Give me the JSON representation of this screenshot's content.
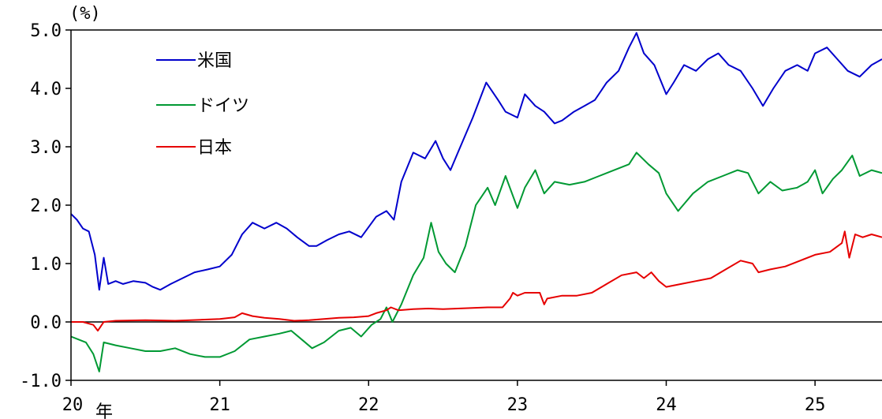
{
  "chart_data": {
    "type": "line",
    "title": "",
    "ylabel": "(%)",
    "xlabel": "",
    "x_unit_label": "年",
    "xlim": [
      2020,
      2025.45
    ],
    "ylim": [
      -1.0,
      5.0
    ],
    "grid": false,
    "legend_placement": "top-left",
    "y_ticks": [
      "5.0",
      "4.0",
      "3.0",
      "2.0",
      "1.0",
      "0.0",
      "-1.0"
    ],
    "x_ticks": [
      {
        "value": 2020,
        "label": "20"
      },
      {
        "value": 2021,
        "label": "21"
      },
      {
        "value": 2022,
        "label": "22"
      },
      {
        "value": 2023,
        "label": "23"
      },
      {
        "value": 2024,
        "label": "24"
      },
      {
        "value": 2025,
        "label": "25"
      }
    ],
    "series": [
      {
        "name": "米国",
        "color": "#0000cc",
        "x": [
          2020.0,
          2020.04,
          2020.08,
          2020.12,
          2020.16,
          2020.19,
          2020.22,
          2020.25,
          2020.3,
          2020.35,
          2020.42,
          2020.5,
          2020.55,
          2020.6,
          2020.67,
          2020.75,
          2020.83,
          2020.92,
          2021.0,
          2021.08,
          2021.15,
          2021.22,
          2021.3,
          2021.38,
          2021.45,
          2021.52,
          2021.6,
          2021.65,
          2021.72,
          2021.8,
          2021.87,
          2021.95,
          2022.05,
          2022.12,
          2022.17,
          2022.22,
          2022.3,
          2022.38,
          2022.45,
          2022.5,
          2022.55,
          2022.6,
          2022.7,
          2022.79,
          2022.87,
          2022.92,
          2023.0,
          2023.05,
          2023.12,
          2023.18,
          2023.25,
          2023.3,
          2023.38,
          2023.45,
          2023.52,
          2023.6,
          2023.68,
          2023.75,
          2023.8,
          2023.85,
          2023.92,
          2024.0,
          2024.05,
          2024.12,
          2024.2,
          2024.28,
          2024.35,
          2024.42,
          2024.5,
          2024.58,
          2024.65,
          2024.72,
          2024.8,
          2024.88,
          2024.95,
          2025.0,
          2025.08,
          2025.15,
          2025.22,
          2025.3,
          2025.38,
          2025.45
        ],
        "values": [
          1.85,
          1.75,
          1.6,
          1.55,
          1.15,
          0.55,
          1.1,
          0.65,
          0.7,
          0.65,
          0.7,
          0.67,
          0.6,
          0.55,
          0.65,
          0.75,
          0.85,
          0.9,
          0.95,
          1.15,
          1.5,
          1.7,
          1.6,
          1.7,
          1.6,
          1.45,
          1.3,
          1.3,
          1.4,
          1.5,
          1.55,
          1.45,
          1.8,
          1.9,
          1.75,
          2.4,
          2.9,
          2.8,
          3.1,
          2.8,
          2.6,
          2.9,
          3.5,
          4.1,
          3.8,
          3.6,
          3.5,
          3.9,
          3.7,
          3.6,
          3.4,
          3.45,
          3.6,
          3.7,
          3.8,
          4.1,
          4.3,
          4.7,
          4.95,
          4.6,
          4.4,
          3.9,
          4.1,
          4.4,
          4.3,
          4.5,
          4.6,
          4.4,
          4.3,
          4.0,
          3.7,
          4.0,
          4.3,
          4.4,
          4.3,
          4.6,
          4.7,
          4.5,
          4.3,
          4.2,
          4.4,
          4.5
        ]
      },
      {
        "name": "ドイツ",
        "color": "#009933",
        "x": [
          2020.0,
          2020.05,
          2020.1,
          2020.15,
          2020.19,
          2020.22,
          2020.3,
          2020.4,
          2020.5,
          2020.6,
          2020.7,
          2020.8,
          2020.9,
          2021.0,
          2021.1,
          2021.2,
          2021.3,
          2021.4,
          2021.48,
          2021.55,
          2021.62,
          2021.7,
          2021.8,
          2021.88,
          2021.95,
          2022.02,
          2022.08,
          2022.12,
          2022.16,
          2022.22,
          2022.3,
          2022.37,
          2022.42,
          2022.47,
          2022.52,
          2022.58,
          2022.65,
          2022.72,
          2022.8,
          2022.85,
          2022.92,
          2023.0,
          2023.05,
          2023.12,
          2023.18,
          2023.25,
          2023.35,
          2023.45,
          2023.55,
          2023.65,
          2023.75,
          2023.8,
          2023.88,
          2023.95,
          2024.0,
          2024.08,
          2024.18,
          2024.28,
          2024.38,
          2024.48,
          2024.55,
          2024.62,
          2024.7,
          2024.78,
          2024.88,
          2024.95,
          2025.0,
          2025.05,
          2025.12,
          2025.18,
          2025.25,
          2025.3,
          2025.38,
          2025.45
        ],
        "values": [
          -0.25,
          -0.3,
          -0.35,
          -0.55,
          -0.85,
          -0.35,
          -0.4,
          -0.45,
          -0.5,
          -0.5,
          -0.45,
          -0.55,
          -0.6,
          -0.6,
          -0.5,
          -0.3,
          -0.25,
          -0.2,
          -0.15,
          -0.3,
          -0.45,
          -0.35,
          -0.15,
          -0.1,
          -0.25,
          -0.05,
          0.05,
          0.25,
          0.0,
          0.3,
          0.8,
          1.1,
          1.7,
          1.2,
          1.0,
          0.85,
          1.3,
          2.0,
          2.3,
          2.0,
          2.5,
          1.95,
          2.3,
          2.6,
          2.2,
          2.4,
          2.35,
          2.4,
          2.5,
          2.6,
          2.7,
          2.9,
          2.7,
          2.55,
          2.2,
          1.9,
          2.2,
          2.4,
          2.5,
          2.6,
          2.55,
          2.2,
          2.4,
          2.25,
          2.3,
          2.4,
          2.6,
          2.2,
          2.45,
          2.6,
          2.85,
          2.5,
          2.6,
          2.55
        ]
      },
      {
        "name": "日本",
        "color": "#e60000",
        "x": [
          2020.0,
          2020.08,
          2020.15,
          2020.18,
          2020.22,
          2020.3,
          2020.5,
          2020.7,
          2020.9,
          2021.0,
          2021.1,
          2021.15,
          2021.22,
          2021.3,
          2021.4,
          2021.5,
          2021.6,
          2021.7,
          2021.8,
          2021.9,
          2022.0,
          2022.05,
          2022.12,
          2022.15,
          2022.2,
          2022.3,
          2022.4,
          2022.5,
          2022.6,
          2022.7,
          2022.8,
          2022.9,
          2022.95,
          2022.97,
          2023.0,
          2023.05,
          2023.1,
          2023.15,
          2023.18,
          2023.2,
          2023.3,
          2023.4,
          2023.5,
          2023.6,
          2023.7,
          2023.8,
          2023.85,
          2023.9,
          2023.95,
          2024.0,
          2024.1,
          2024.2,
          2024.3,
          2024.4,
          2024.5,
          2024.58,
          2024.62,
          2024.7,
          2024.8,
          2024.9,
          2025.0,
          2025.1,
          2025.18,
          2025.2,
          2025.23,
          2025.27,
          2025.32,
          2025.38,
          2025.45
        ],
        "values": [
          0.0,
          0.0,
          -0.05,
          -0.15,
          0.0,
          0.02,
          0.03,
          0.02,
          0.04,
          0.05,
          0.08,
          0.15,
          0.1,
          0.07,
          0.05,
          0.02,
          0.03,
          0.05,
          0.07,
          0.08,
          0.1,
          0.15,
          0.2,
          0.25,
          0.2,
          0.22,
          0.23,
          0.22,
          0.23,
          0.24,
          0.25,
          0.25,
          0.4,
          0.5,
          0.45,
          0.5,
          0.5,
          0.5,
          0.3,
          0.4,
          0.45,
          0.45,
          0.5,
          0.65,
          0.8,
          0.85,
          0.75,
          0.85,
          0.7,
          0.6,
          0.65,
          0.7,
          0.75,
          0.9,
          1.05,
          1.0,
          0.85,
          0.9,
          0.95,
          1.05,
          1.15,
          1.2,
          1.35,
          1.55,
          1.1,
          1.5,
          1.45,
          1.5,
          1.45
        ]
      }
    ]
  }
}
